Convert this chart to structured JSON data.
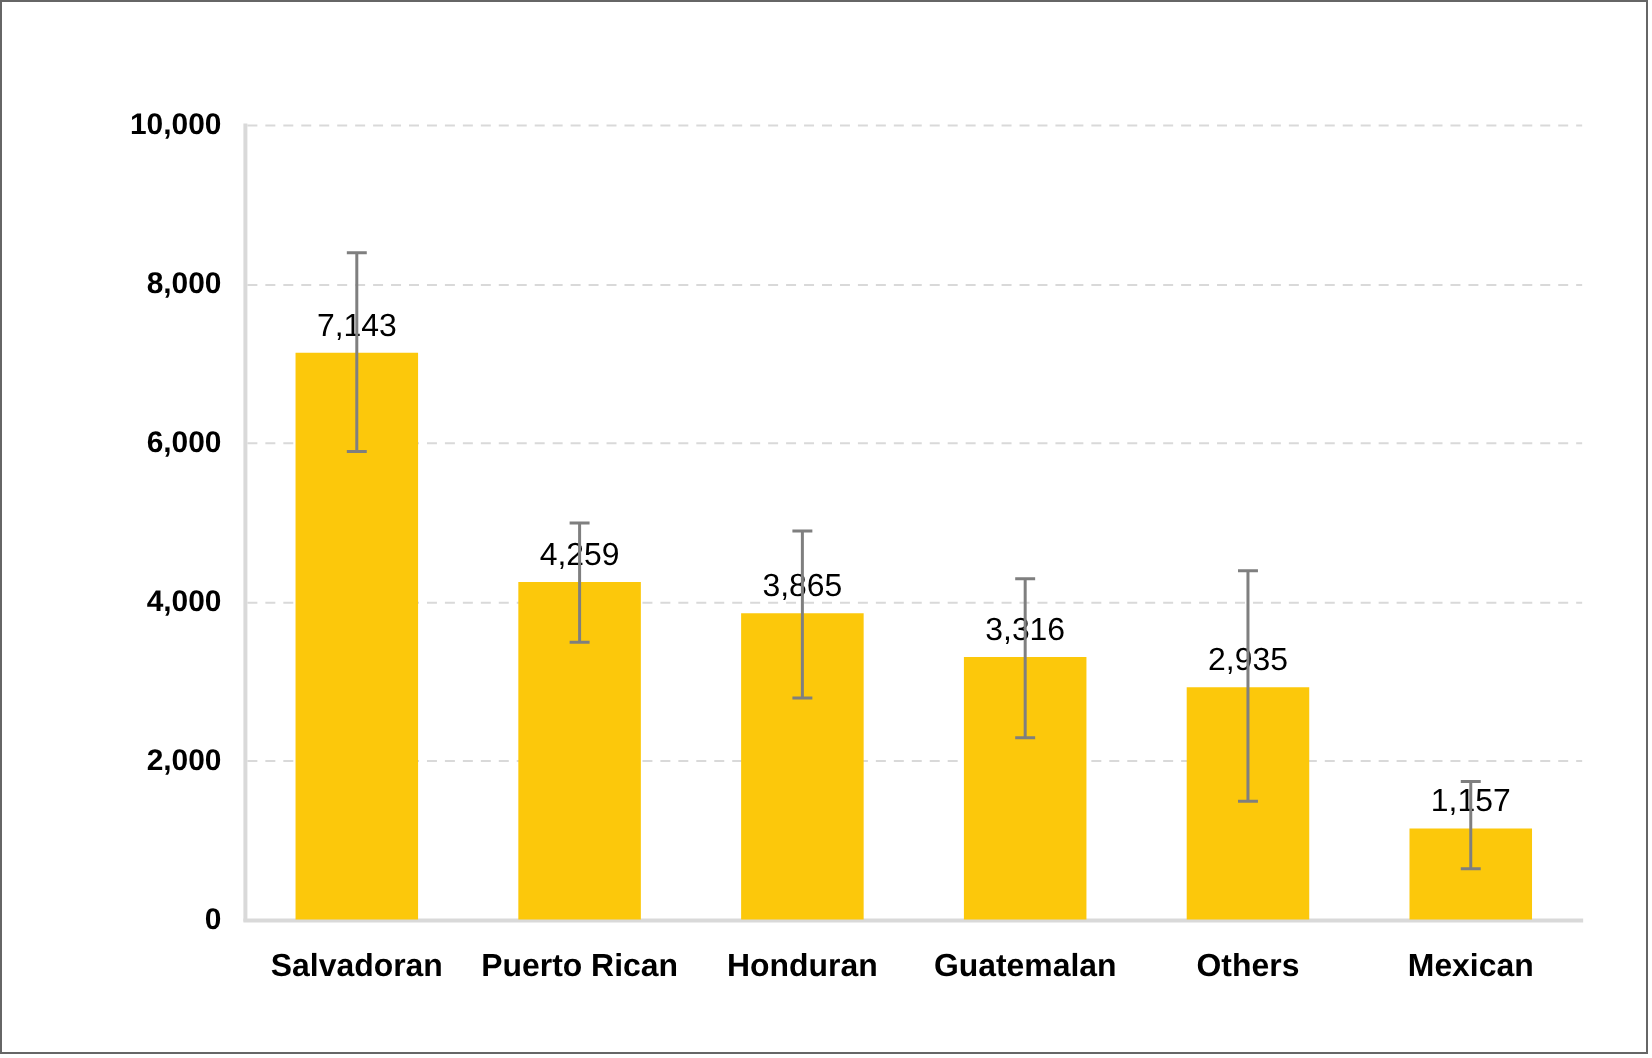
{
  "chart_data": {
    "type": "bar",
    "categories": [
      "Salvadoran",
      "Puerto Rican",
      "Honduran",
      "Guatemalan",
      "Others",
      "Mexican"
    ],
    "values": [
      7143,
      4259,
      3865,
      3316,
      2935,
      1157
    ],
    "errors": [
      [
        5900,
        8400
      ],
      [
        3500,
        5000
      ],
      [
        2800,
        4900
      ],
      [
        2300,
        4300
      ],
      [
        1500,
        4400
      ],
      [
        650,
        1750
      ]
    ],
    "color": "#fcc80b",
    "ylim": [
      0,
      10000
    ],
    "yticks": [
      {
        "value": 0,
        "label": "0"
      },
      {
        "value": 2000,
        "label": "2,000"
      },
      {
        "value": 4000,
        "label": "4,000"
      },
      {
        "value": 6000,
        "label": "6,000"
      },
      {
        "value": 8000,
        "label": "8,000"
      },
      {
        "value": 10000,
        "label": "10,000"
      }
    ],
    "value_labels": [
      "7,143",
      "4,259",
      "3,865",
      "3,316",
      "2,935",
      "1,157"
    ],
    "grid": "y",
    "legend": false
  }
}
